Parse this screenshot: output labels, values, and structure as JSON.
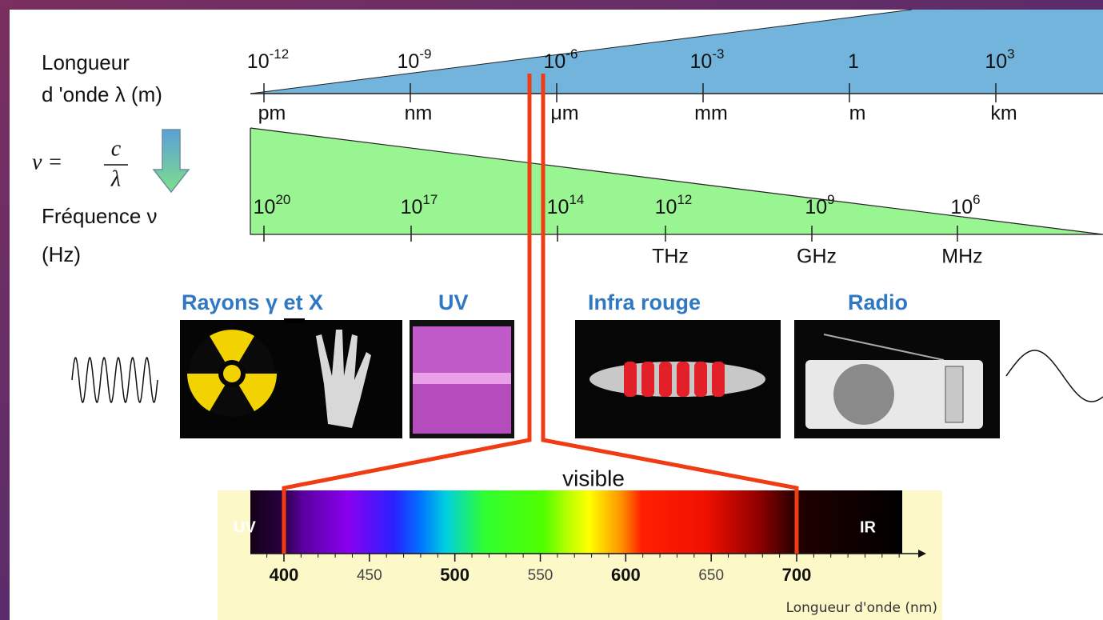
{
  "wavelength": {
    "label_line1": "Longueur",
    "label_line2": "d 'onde λ (m)",
    "ticks": [
      {
        "base": "10",
        "exp": "-12",
        "unit": "pm"
      },
      {
        "base": "10",
        "exp": "-9",
        "unit": "nm"
      },
      {
        "base": "10",
        "exp": "-6",
        "unit": "μm"
      },
      {
        "base": "10",
        "exp": "-3",
        "unit": "mm"
      },
      {
        "base": "1",
        "exp": null,
        "unit": "m"
      },
      {
        "base": "10",
        "exp": "3",
        "unit": "km"
      }
    ]
  },
  "formula": {
    "lhs": "ν =",
    "numerator": "c",
    "denominator": "λ"
  },
  "frequency": {
    "label_line1": "Fréquence ν",
    "label_line2": "(Hz)",
    "ticks": [
      {
        "base": "10",
        "exp": "20",
        "unit": null
      },
      {
        "base": "10",
        "exp": "17",
        "unit": null
      },
      {
        "base": "10",
        "exp": "14",
        "unit": null
      },
      {
        "base": "10",
        "exp": "12",
        "unit": "THz"
      },
      {
        "base": "10",
        "exp": "9",
        "unit": "GHz"
      },
      {
        "base": "10",
        "exp": "6",
        "unit": "MHz"
      }
    ]
  },
  "bands": [
    "Rayons γ et X",
    "UV",
    "Infra rouge",
    "Radio"
  ],
  "visible": {
    "title": "visible",
    "left_label": "UV",
    "right_label": "IR",
    "ticks": [
      400,
      450,
      500,
      550,
      600,
      650,
      700
    ],
    "axis_label": "Longueur d'onde (nm)"
  }
}
